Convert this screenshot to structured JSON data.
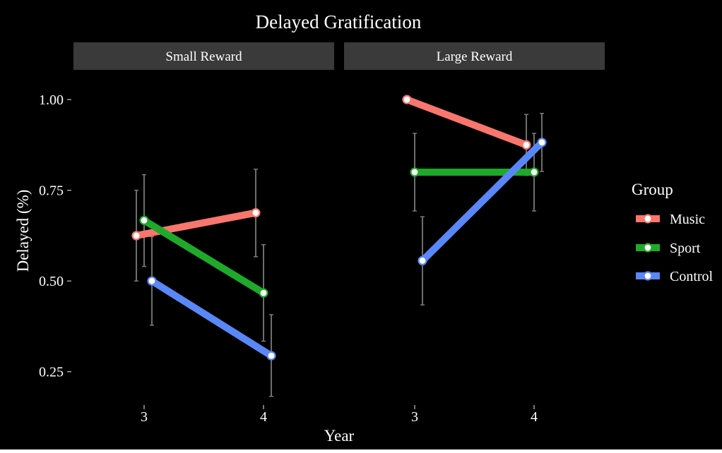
{
  "colors": {
    "background": "#000000",
    "strip": "#3a3a3a",
    "text": "#ffffff",
    "errorbar": "#7a7a7a"
  },
  "chart_data": {
    "type": "line",
    "title": "Delayed Gratification",
    "xlabel": "Year",
    "ylabel": "Delayed (%)",
    "x": [
      "3",
      "4"
    ],
    "ylim": [
      0.16,
      1.08
    ],
    "yticks": [
      0.25,
      0.5,
      0.75,
      1.0
    ],
    "ytick_labels": [
      "0.25",
      "0.50",
      "0.75",
      "1.00"
    ],
    "grid": false,
    "legend": {
      "title": "Group",
      "placement": "right"
    },
    "series": [
      {
        "name": "Music",
        "color": "#f8766d"
      },
      {
        "name": "Sport",
        "color": "#1fa92a"
      },
      {
        "name": "Control",
        "color": "#5a87f7"
      }
    ],
    "panels": [
      {
        "label": "Small Reward",
        "data": {
          "Music": [
            {
              "x": "3",
              "y": 0.625,
              "lo": 0.5,
              "hi": 0.75
            },
            {
              "x": "4",
              "y": 0.688,
              "lo": 0.567,
              "hi": 0.808
            }
          ],
          "Sport": [
            {
              "x": "3",
              "y": 0.667,
              "lo": 0.54,
              "hi": 0.793
            },
            {
              "x": "4",
              "y": 0.467,
              "lo": 0.334,
              "hi": 0.6
            }
          ],
          "Control": [
            {
              "x": "3",
              "y": 0.5,
              "lo": 0.378,
              "hi": 0.622
            },
            {
              "x": "4",
              "y": 0.294,
              "lo": 0.182,
              "hi": 0.407
            }
          ]
        }
      },
      {
        "label": "Large Reward",
        "data": {
          "Music": [
            {
              "x": "3",
              "y": 1.0,
              "lo": 1.0,
              "hi": 1.0
            },
            {
              "x": "4",
              "y": 0.875,
              "lo": 0.791,
              "hi": 0.959
            }
          ],
          "Sport": [
            {
              "x": "3",
              "y": 0.8,
              "lo": 0.693,
              "hi": 0.907
            },
            {
              "x": "4",
              "y": 0.8,
              "lo": 0.693,
              "hi": 0.907
            }
          ],
          "Control": [
            {
              "x": "3",
              "y": 0.556,
              "lo": 0.434,
              "hi": 0.677
            },
            {
              "x": "4",
              "y": 0.882,
              "lo": 0.802,
              "hi": 0.962
            }
          ]
        }
      }
    ]
  }
}
